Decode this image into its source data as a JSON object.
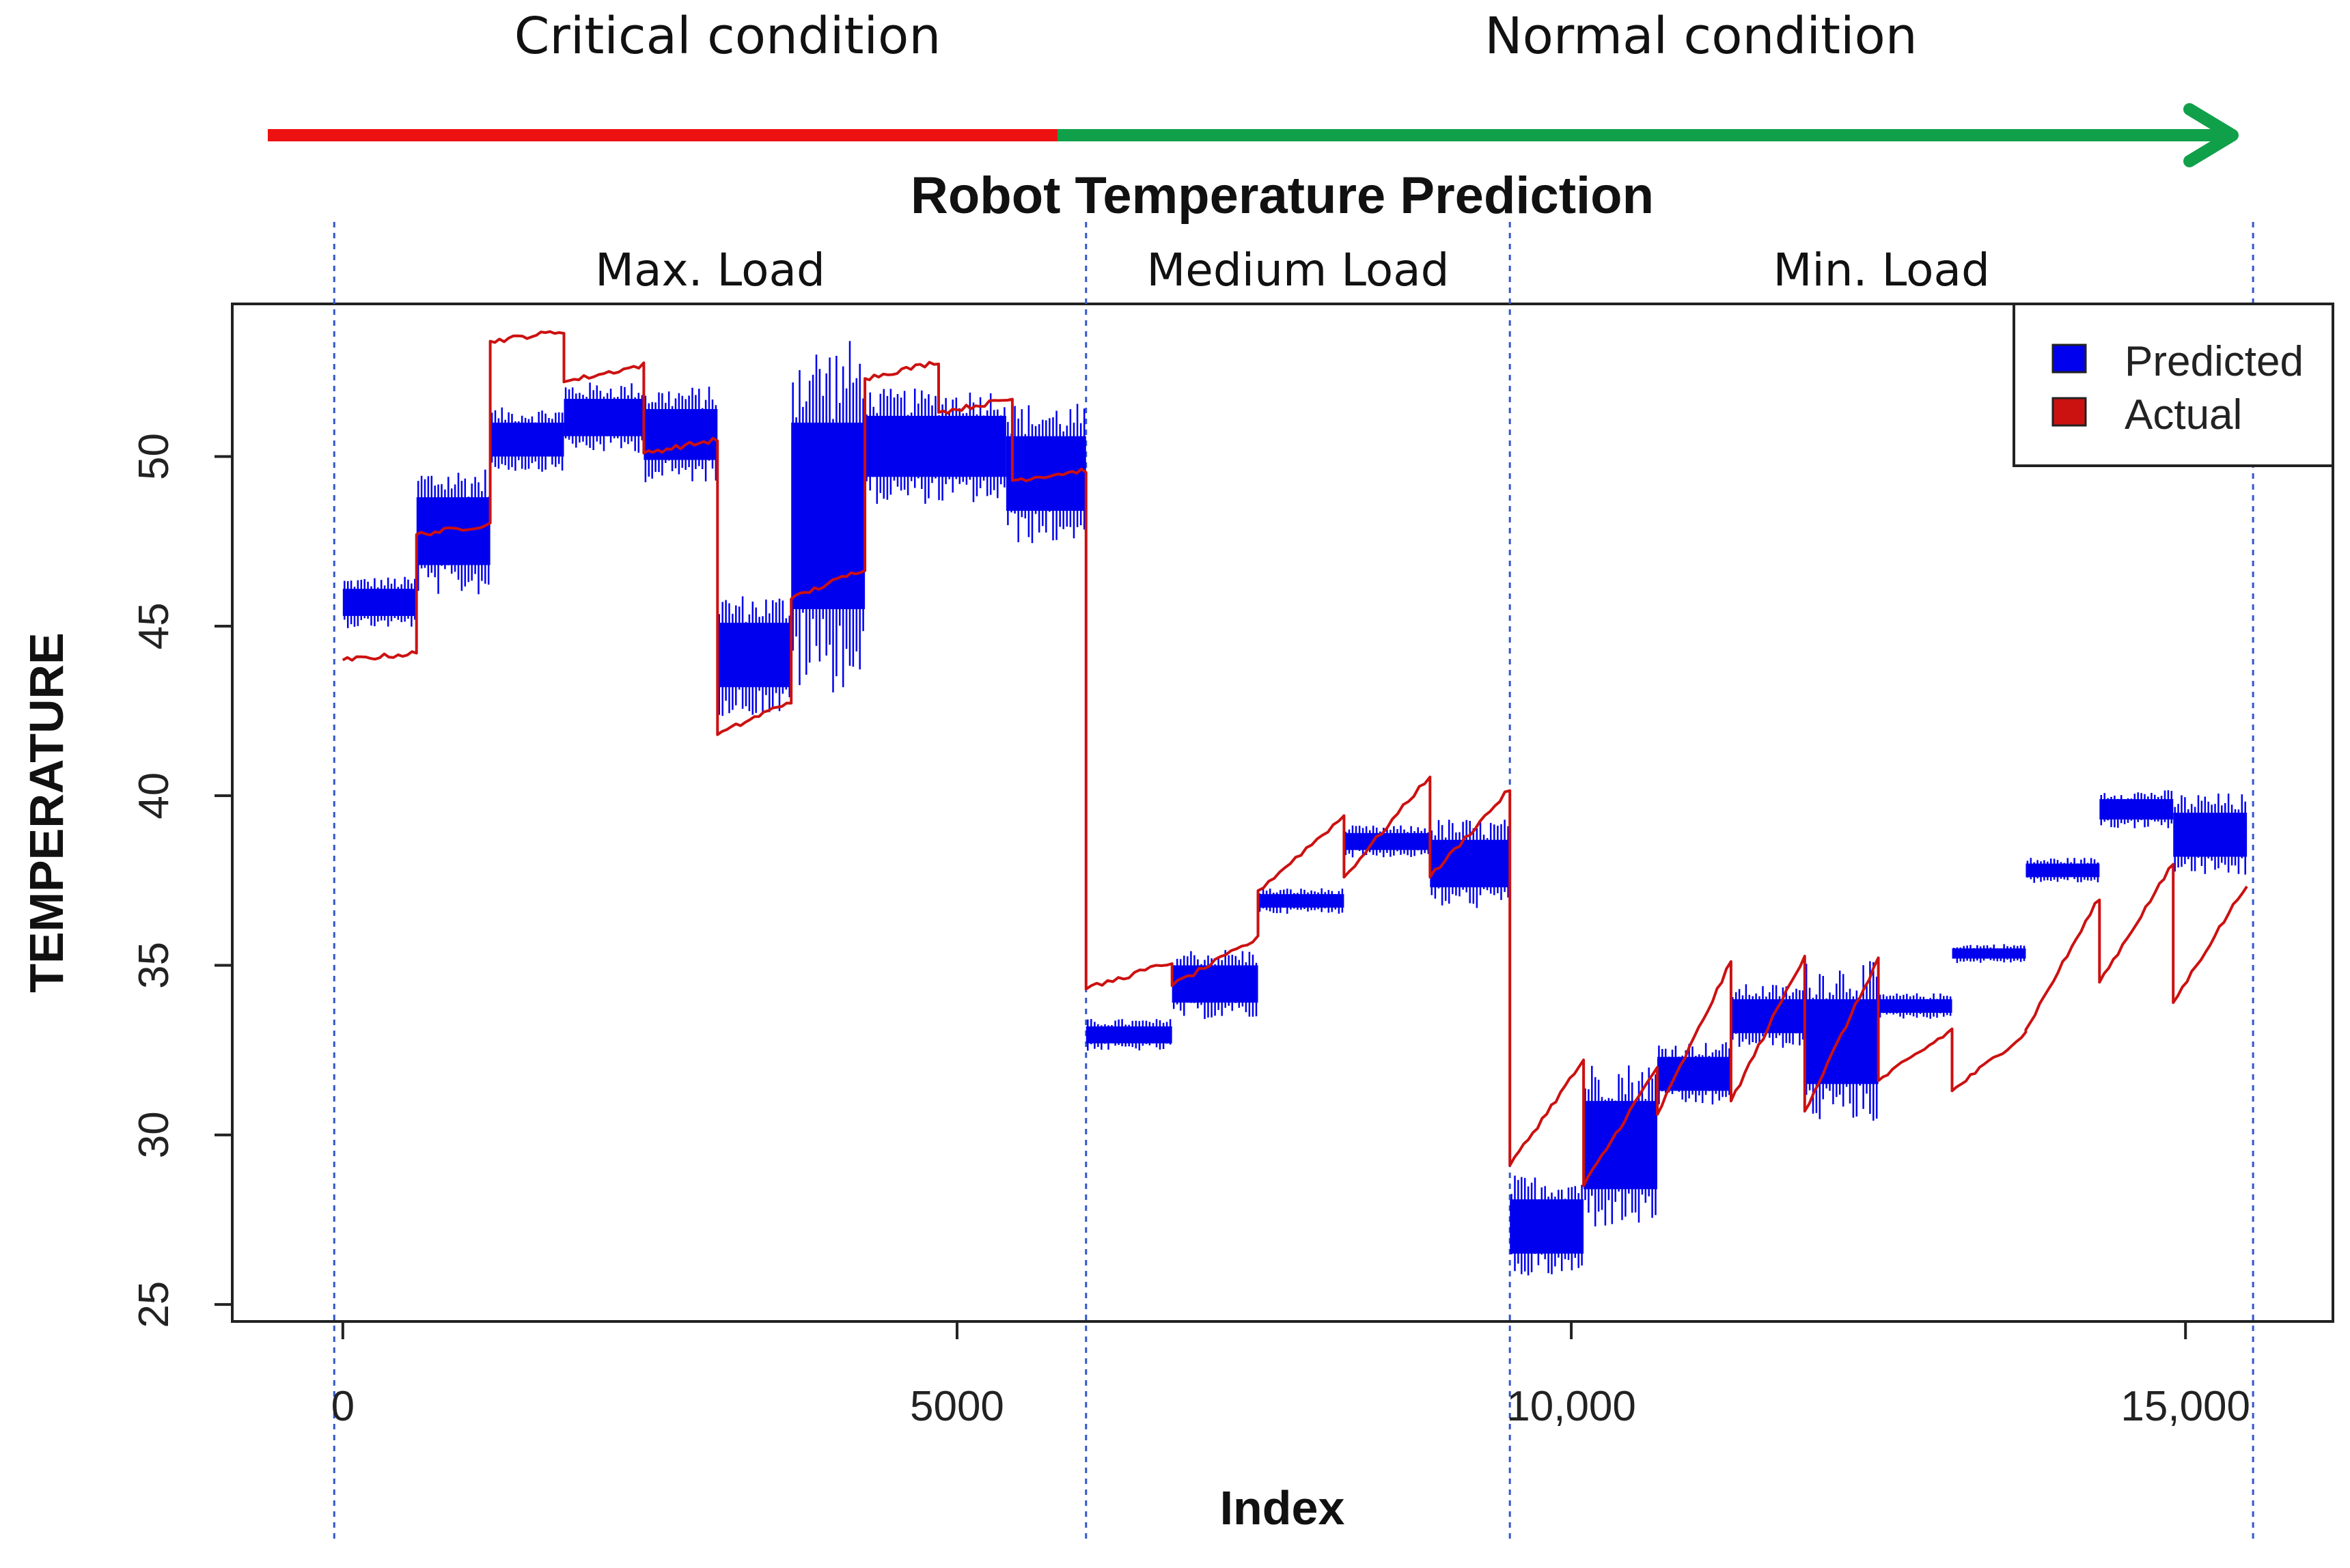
{
  "header": {
    "left_condition": "Critical condition",
    "right_condition": "Normal condition"
  },
  "colors": {
    "critical": "#ee1111",
    "normal": "#11a04a",
    "predicted": "#0000ee",
    "actual": "#cc1111",
    "divider": "#3355cc"
  },
  "chart_data": {
    "type": "line",
    "title": "Robot Temperature Prediction",
    "xlabel": "Index",
    "ylabel": "TEMPERATURE",
    "xlim": [
      -900,
      16200
    ],
    "ylim": [
      24.5,
      54.5
    ],
    "x_ticks": [
      {
        "value": 0,
        "label": "0"
      },
      {
        "value": 5000,
        "label": "5000"
      },
      {
        "value": 10000,
        "label": "10,000"
      },
      {
        "value": 15000,
        "label": "15,000"
      }
    ],
    "y_ticks": [
      {
        "value": 25,
        "label": "25"
      },
      {
        "value": 30,
        "label": "30"
      },
      {
        "value": 35,
        "label": "35"
      },
      {
        "value": 40,
        "label": "40"
      },
      {
        "value": 45,
        "label": "45"
      },
      {
        "value": 50,
        "label": "50"
      }
    ],
    "legend": {
      "position": "top-right",
      "entries": [
        {
          "name": "Predicted",
          "color": "#0000ee"
        },
        {
          "name": "Actual",
          "color": "#cc1111"
        }
      ]
    },
    "regions": [
      {
        "label": "Max. Load",
        "start": -70,
        "end": 6050
      },
      {
        "label": "Medium Load",
        "start": 6050,
        "end": 9500
      },
      {
        "label": "Min. Load",
        "start": 9500,
        "end": 15550
      }
    ],
    "series": [
      {
        "name": "Predicted",
        "style": "noisy-band",
        "segments": [
          {
            "x0": 0,
            "x1": 600,
            "low": 45.3,
            "high": 46.1
          },
          {
            "x0": 600,
            "x1": 1200,
            "low": 46.8,
            "high": 48.8
          },
          {
            "x0": 1200,
            "x1": 1800,
            "low": 50.0,
            "high": 51.0
          },
          {
            "x0": 1800,
            "x1": 2450,
            "low": 50.6,
            "high": 51.7
          },
          {
            "x0": 2450,
            "x1": 3050,
            "low": 49.9,
            "high": 51.4
          },
          {
            "x0": 3050,
            "x1": 3650,
            "low": 43.2,
            "high": 45.1
          },
          {
            "x0": 3650,
            "x1": 4250,
            "low": 45.5,
            "high": 51.0
          },
          {
            "x0": 4250,
            "x1": 5400,
            "low": 49.4,
            "high": 51.2
          },
          {
            "x0": 5400,
            "x1": 6050,
            "low": 48.4,
            "high": 50.6
          },
          {
            "x0": 6050,
            "x1": 6750,
            "low": 32.7,
            "high": 33.2
          },
          {
            "x0": 6750,
            "x1": 7450,
            "low": 33.9,
            "high": 35.0
          },
          {
            "x0": 7450,
            "x1": 8150,
            "low": 36.7,
            "high": 37.1
          },
          {
            "x0": 8150,
            "x1": 8850,
            "low": 38.4,
            "high": 38.9
          },
          {
            "x0": 8850,
            "x1": 9500,
            "low": 37.3,
            "high": 38.7
          },
          {
            "x0": 9500,
            "x1": 10100,
            "low": 26.5,
            "high": 28.1
          },
          {
            "x0": 10100,
            "x1": 10700,
            "low": 28.4,
            "high": 31.0
          },
          {
            "x0": 10700,
            "x1": 11300,
            "low": 31.3,
            "high": 32.3
          },
          {
            "x0": 11300,
            "x1": 11900,
            "low": 33.0,
            "high": 34.0
          },
          {
            "x0": 11900,
            "x1": 12500,
            "low": 31.5,
            "high": 34.0
          },
          {
            "x0": 12500,
            "x1": 13100,
            "low": 33.6,
            "high": 34.0
          },
          {
            "x0": 13100,
            "x1": 13700,
            "low": 35.2,
            "high": 35.5
          },
          {
            "x0": 13700,
            "x1": 14300,
            "low": 37.6,
            "high": 38.0
          },
          {
            "x0": 14300,
            "x1": 14900,
            "low": 39.3,
            "high": 39.9
          },
          {
            "x0": 14900,
            "x1": 15500,
            "low": 38.2,
            "high": 39.5
          }
        ]
      },
      {
        "name": "Actual",
        "style": "line",
        "segments": [
          {
            "x0": 0,
            "x1": 600,
            "y0": 44.0,
            "y1": 44.2
          },
          {
            "x0": 600,
            "x1": 1200,
            "y0": 47.7,
            "y1": 48.0
          },
          {
            "x0": 1200,
            "x1": 1800,
            "y0": 53.4,
            "y1": 53.7
          },
          {
            "x0": 1800,
            "x1": 2450,
            "y0": 52.2,
            "y1": 52.7
          },
          {
            "x0": 2450,
            "x1": 3050,
            "y0": 50.1,
            "y1": 50.5
          },
          {
            "x0": 3050,
            "x1": 3650,
            "y0": 41.8,
            "y1": 42.8
          },
          {
            "x0": 3650,
            "x1": 4250,
            "y0": 45.8,
            "y1": 46.7
          },
          {
            "x0": 4250,
            "x1": 4850,
            "y0": 52.3,
            "y1": 52.8
          },
          {
            "x0": 4850,
            "x1": 5450,
            "y0": 51.3,
            "y1": 51.7
          },
          {
            "x0": 5450,
            "x1": 6050,
            "y0": 49.3,
            "y1": 49.6
          },
          {
            "x0": 6050,
            "x1": 6750,
            "y0": 34.3,
            "y1": 35.1
          },
          {
            "x0": 6750,
            "x1": 7450,
            "y0": 34.4,
            "y1": 35.8
          },
          {
            "x0": 7450,
            "x1": 8150,
            "y0": 37.2,
            "y1": 39.4
          },
          {
            "x0": 8150,
            "x1": 8850,
            "y0": 37.6,
            "y1": 40.6
          },
          {
            "x0": 8850,
            "x1": 9500,
            "y0": 37.6,
            "y1": 40.2
          },
          {
            "x0": 9500,
            "x1": 10100,
            "y0": 29.1,
            "y1": 32.2
          },
          {
            "x0": 10100,
            "x1": 10700,
            "y0": 28.5,
            "y1": 32.0
          },
          {
            "x0": 10700,
            "x1": 11300,
            "y0": 30.6,
            "y1": 35.1
          },
          {
            "x0": 11300,
            "x1": 11900,
            "y0": 31.0,
            "y1": 35.3
          },
          {
            "x0": 11900,
            "x1": 12500,
            "y0": 30.7,
            "y1": 35.2
          },
          {
            "x0": 12500,
            "x1": 13100,
            "y0": 31.6,
            "y1": 33.1
          },
          {
            "x0": 13100,
            "x1": 13700,
            "y0": 31.3,
            "y1": 33.0
          },
          {
            "x0": 13700,
            "x1": 14300,
            "y0": 33.1,
            "y1": 37.0
          },
          {
            "x0": 14300,
            "x1": 14900,
            "y0": 34.5,
            "y1": 38.0
          },
          {
            "x0": 14900,
            "x1": 15500,
            "y0": 33.9,
            "y1": 37.4
          }
        ]
      }
    ]
  }
}
